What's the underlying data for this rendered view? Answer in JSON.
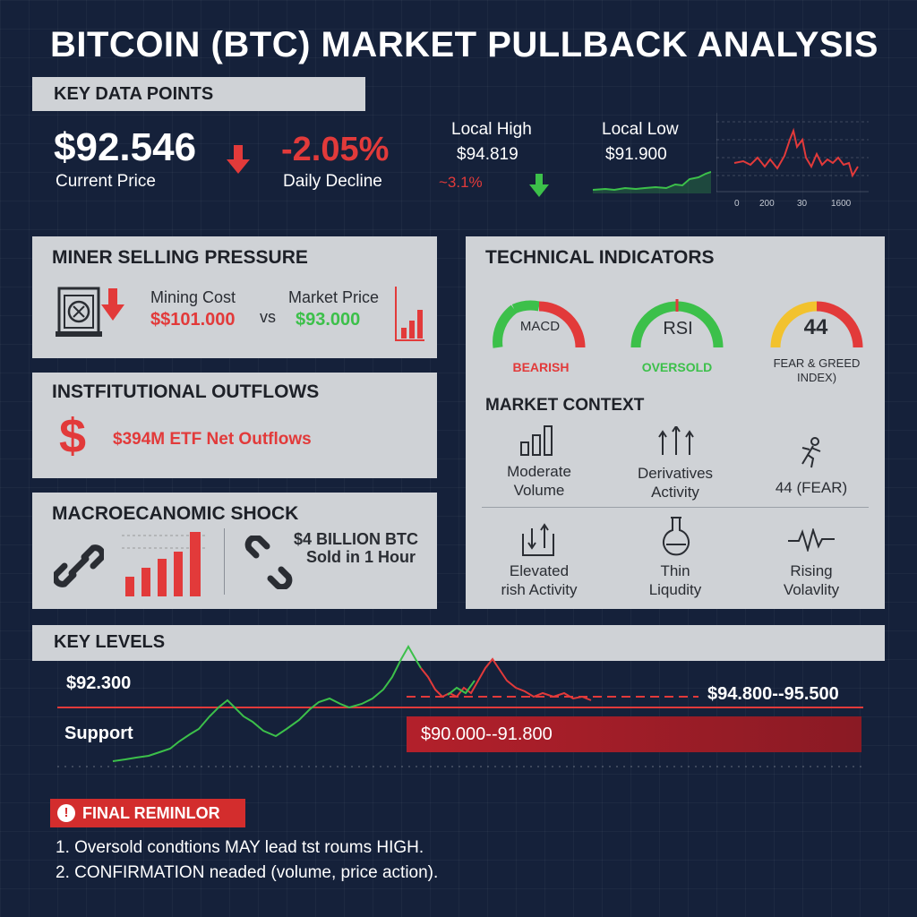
{
  "title": "BITCOIN (BTC) MARKET PULLBACK ANALYSIS",
  "key_data": {
    "heading": "KEY DATA POINTS",
    "price": "$92.546",
    "price_label": "Current Price",
    "decline": "-2.05%",
    "decline_label": "Daily Decline",
    "high_label": "Local High",
    "high_value": "$94.819",
    "high_change": "~3.1%",
    "low_label": "Local Low",
    "low_value": "$91.900",
    "mini_chart_ticks": [
      "0",
      "200",
      "30",
      "1600"
    ]
  },
  "miner": {
    "heading": "MINER SELLING PRESSURE",
    "cost_label": "Mining Cost",
    "cost_value": "$$101.000",
    "vs": "vs",
    "market_label": "Market Price",
    "market_value": "$93.000"
  },
  "institutional": {
    "heading": "INSTFITUTIONAL OUTFLOWS",
    "value": "$394M ETF Net Outflows"
  },
  "macro": {
    "heading": "MACROECANOMIC SHOCK",
    "line1": "$4 BILLION BTC",
    "line2": "Sold in 1 Hour"
  },
  "technical": {
    "heading": "TECHNICAL INDICATORS",
    "macd_label": "MACD",
    "macd_status": "BEARISH",
    "rsi_label": "RSI",
    "rsi_status": "OVERSOLD",
    "fg_value": "44",
    "fg_label_1": "FEAR & GREED",
    "fg_label_2": "INDEX)",
    "context_heading": "MARKET CONTEXT",
    "ctx1_a": "Moderate",
    "ctx1_b": "Volume",
    "ctx2_a": "Derivatives",
    "ctx2_b": "Activity",
    "ctx3": "44 (FEAR)",
    "ctx4_a": "Elevated",
    "ctx4_b": "rish Activity",
    "ctx5_a": "Thin",
    "ctx5_b": "Liqudity",
    "ctx6_a": "Rising",
    "ctx6_b": "Volavlity"
  },
  "levels": {
    "heading": "KEY LEVELS",
    "price_level": "$92.300",
    "support_label": "Support",
    "resistance_range": "$94.800--95.500",
    "support_range": "$90.000--91.800"
  },
  "reminder": {
    "heading": "FINAL REMINLOR",
    "line1": "1. Oversold condtions MAY lead tst roums HIGH.",
    "line2": "2. CONFIRMATION neaded (volume, price action)."
  },
  "colors": {
    "background": "#15213a",
    "panel": "#cfd2d6",
    "red": "#e23a3a",
    "green": "#3cc04a",
    "yellow": "#f2c22e"
  }
}
